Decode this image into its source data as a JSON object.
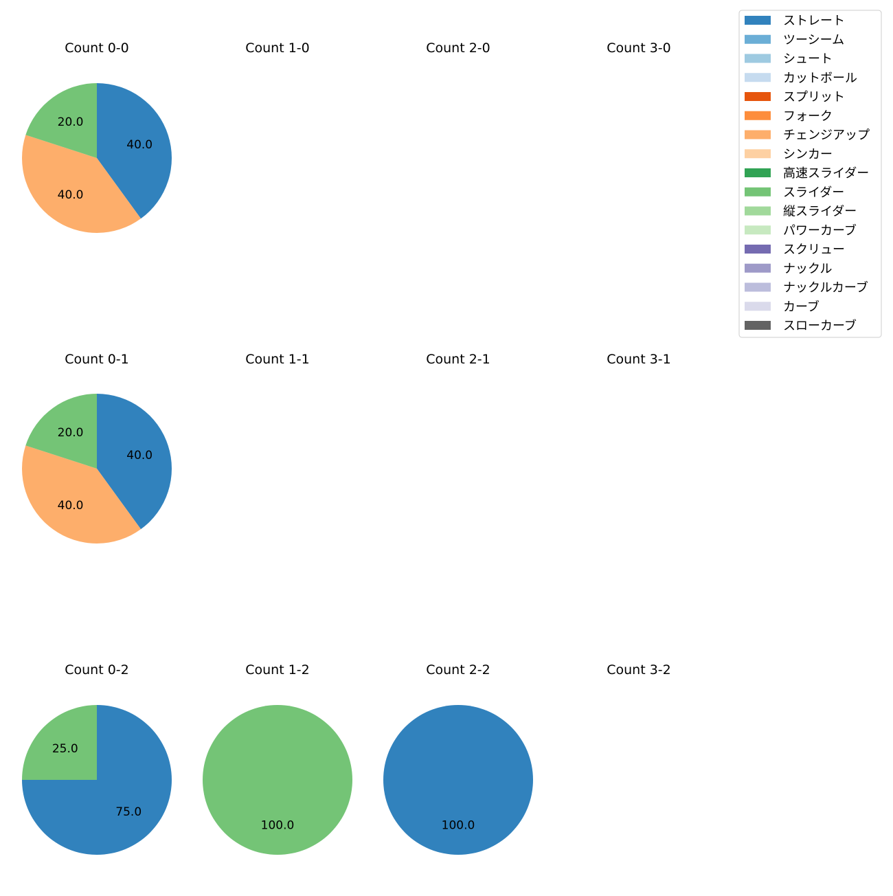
{
  "colors": {
    "ストレート": "#3182bd",
    "ツーシーム": "#6baed6",
    "シュート": "#9ecae1",
    "カットボール": "#c6dbef",
    "スプリット": "#e6550d",
    "フォーク": "#fd8d3c",
    "チェンジアップ": "#fdae6b",
    "シンカー": "#fdd0a2",
    "高速スライダー": "#31a354",
    "スライダー": "#74c476",
    "縦スライダー": "#a1d99b",
    "パワーカーブ": "#c7e9c0",
    "スクリュー": "#756bb1",
    "ナックル": "#9e9ac8",
    "ナックルカーブ": "#bcbddc",
    "カーブ": "#dadaeb",
    "スローカーブ": "#636363"
  },
  "chart_data": {
    "type": "pie",
    "legend": {
      "placement": "top-right",
      "entries": [
        "ストレート",
        "ツーシーム",
        "シュート",
        "カットボール",
        "スプリット",
        "フォーク",
        "チェンジアップ",
        "シンカー",
        "高速スライダー",
        "スライダー",
        "縦スライダー",
        "パワーカーブ",
        "スクリュー",
        "ナックル",
        "ナックルカーブ",
        "カーブ",
        "スローカーブ"
      ]
    },
    "panels": [
      {
        "title": "Count 0-0",
        "slices": [
          {
            "category": "ストレート",
            "value": 40.0,
            "label": "40.0"
          },
          {
            "category": "チェンジアップ",
            "value": 40.0,
            "label": "40.0"
          },
          {
            "category": "スライダー",
            "value": 20.0,
            "label": "20.0"
          }
        ]
      },
      {
        "title": "Count 1-0",
        "slices": []
      },
      {
        "title": "Count 2-0",
        "slices": []
      },
      {
        "title": "Count 3-0",
        "slices": []
      },
      {
        "title": "Count 0-1",
        "slices": [
          {
            "category": "ストレート",
            "value": 40.0,
            "label": "40.0"
          },
          {
            "category": "チェンジアップ",
            "value": 40.0,
            "label": "40.0"
          },
          {
            "category": "スライダー",
            "value": 20.0,
            "label": "20.0"
          }
        ]
      },
      {
        "title": "Count 1-1",
        "slices": []
      },
      {
        "title": "Count 2-1",
        "slices": []
      },
      {
        "title": "Count 3-1",
        "slices": []
      },
      {
        "title": "Count 0-2",
        "slices": [
          {
            "category": "ストレート",
            "value": 75.0,
            "label": "75.0"
          },
          {
            "category": "スライダー",
            "value": 25.0,
            "label": "25.0"
          }
        ]
      },
      {
        "title": "Count 1-2",
        "slices": [
          {
            "category": "スライダー",
            "value": 100.0,
            "label": "100.0"
          }
        ]
      },
      {
        "title": "Count 2-2",
        "slices": [
          {
            "category": "ストレート",
            "value": 100.0,
            "label": "100.0"
          }
        ]
      },
      {
        "title": "Count 3-2",
        "slices": []
      }
    ]
  }
}
